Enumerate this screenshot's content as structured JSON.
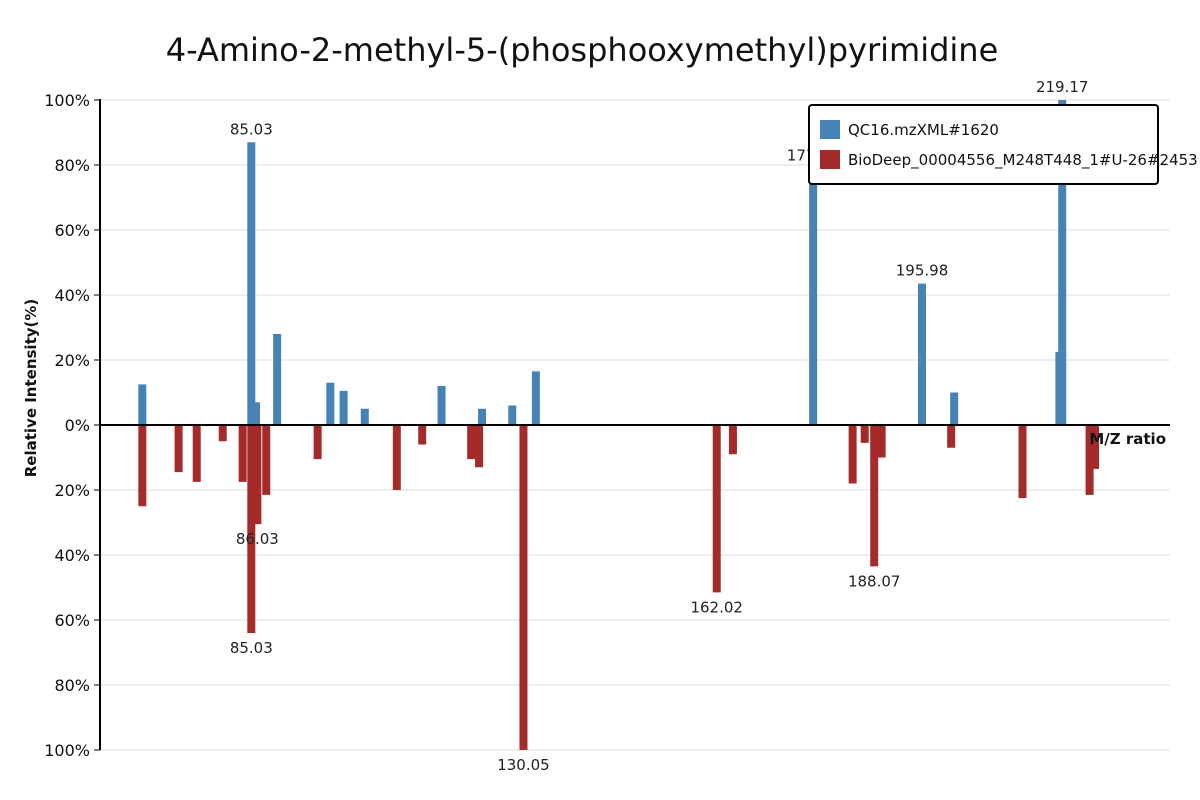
{
  "chart_data": {
    "type": "bar",
    "title": "4-Amino-2-methyl-5-(phosphooxymethyl)pyrimidine",
    "xlabel": "M/Z ratio",
    "ylabel": "Relative Intensity(%)",
    "ylim": [
      -100,
      100
    ],
    "xlim": [
      60,
      237
    ],
    "y_ticks": [
      {
        "value": 100,
        "label": "100%"
      },
      {
        "value": 80,
        "label": "80%"
      },
      {
        "value": 60,
        "label": "60%"
      },
      {
        "value": 40,
        "label": "40%"
      },
      {
        "value": 20,
        "label": "20%"
      },
      {
        "value": 0,
        "label": "0%"
      },
      {
        "value": -20,
        "label": "20%"
      },
      {
        "value": -40,
        "label": "40%"
      },
      {
        "value": -60,
        "label": "60%"
      },
      {
        "value": -80,
        "label": "80%"
      },
      {
        "value": -100,
        "label": "100%"
      }
    ],
    "grid": true,
    "legend_position": "top-right",
    "series": [
      {
        "name": "QC16.mzXML#1620",
        "color": "#4682b4",
        "direction": "up",
        "points": [
          {
            "mz": 67.0,
            "value": 12.5
          },
          {
            "mz": 85.03,
            "value": 87
          },
          {
            "mz": 85.8,
            "value": 7
          },
          {
            "mz": 89.3,
            "value": 28
          },
          {
            "mz": 98.1,
            "value": 13
          },
          {
            "mz": 100.3,
            "value": 10.5
          },
          {
            "mz": 103.8,
            "value": 5
          },
          {
            "mz": 116.5,
            "value": 12
          },
          {
            "mz": 123.2,
            "value": 5
          },
          {
            "mz": 128.2,
            "value": 6
          },
          {
            "mz": 132.1,
            "value": 16.5
          },
          {
            "mz": 177.97,
            "value": 79
          },
          {
            "mz": 195.98,
            "value": 43.5
          },
          {
            "mz": 201.3,
            "value": 10
          },
          {
            "mz": 218.7,
            "value": 22.5
          },
          {
            "mz": 219.17,
            "value": 100
          }
        ]
      },
      {
        "name": "BioDeep_00004556_M248T448_1#U-26#2453",
        "color": "#a52a2a",
        "direction": "down",
        "points": [
          {
            "mz": 67.0,
            "value": 25
          },
          {
            "mz": 73.0,
            "value": 14.5
          },
          {
            "mz": 76.0,
            "value": 17.5
          },
          {
            "mz": 80.3,
            "value": 5
          },
          {
            "mz": 83.6,
            "value": 17.5
          },
          {
            "mz": 85.03,
            "value": 64
          },
          {
            "mz": 86.03,
            "value": 30.5
          },
          {
            "mz": 87.5,
            "value": 21.5
          },
          {
            "mz": 96.0,
            "value": 10.5
          },
          {
            "mz": 109.1,
            "value": 20
          },
          {
            "mz": 113.3,
            "value": 6
          },
          {
            "mz": 130.05,
            "value": 100
          },
          {
            "mz": 121.4,
            "value": 10.5
          },
          {
            "mz": 122.7,
            "value": 13
          },
          {
            "mz": 162.02,
            "value": 51.5
          },
          {
            "mz": 164.7,
            "value": 9
          },
          {
            "mz": 184.5,
            "value": 18
          },
          {
            "mz": 186.5,
            "value": 5.5
          },
          {
            "mz": 188.07,
            "value": 43.5
          },
          {
            "mz": 189.3,
            "value": 10
          },
          {
            "mz": 200.8,
            "value": 7
          },
          {
            "mz": 212.6,
            "value": 22.5
          },
          {
            "mz": 223.7,
            "value": 21.5
          },
          {
            "mz": 224.6,
            "value": 13.5
          }
        ]
      }
    ],
    "peak_labels": [
      {
        "series": 0,
        "mz": 85.03,
        "text": "85.03"
      },
      {
        "series": 0,
        "mz": 177.97,
        "text": "177.97"
      },
      {
        "series": 0,
        "mz": 195.98,
        "text": "195.98"
      },
      {
        "series": 0,
        "mz": 219.17,
        "text": "219.17"
      },
      {
        "series": 1,
        "mz": 86.03,
        "text": "86.03"
      },
      {
        "series": 1,
        "mz": 85.03,
        "text": "85.03"
      },
      {
        "series": 1,
        "mz": 130.05,
        "text": "130.05"
      },
      {
        "series": 1,
        "mz": 162.02,
        "text": "162.02"
      },
      {
        "series": 1,
        "mz": 188.07,
        "text": "188.07"
      }
    ]
  }
}
